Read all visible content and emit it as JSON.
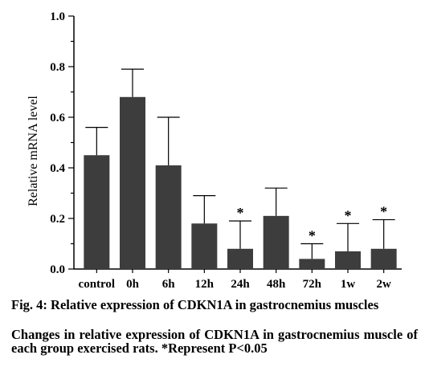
{
  "chart_data": {
    "type": "bar",
    "categories": [
      "control",
      "0h",
      "6h",
      "12h",
      "24h",
      "48h",
      "72h",
      "1w",
      "2w"
    ],
    "values": [
      0.45,
      0.68,
      0.41,
      0.18,
      0.08,
      0.21,
      0.04,
      0.07,
      0.08
    ],
    "error_upper": [
      0.56,
      0.79,
      0.6,
      0.29,
      0.19,
      0.32,
      0.1,
      0.18,
      0.195
    ],
    "significant": [
      false,
      false,
      false,
      false,
      true,
      false,
      true,
      true,
      true
    ],
    "significance_marker": "*",
    "ylabel": "Relative mRNA level",
    "xlabel": "",
    "ylim": [
      0,
      1.0
    ],
    "yticks": [
      "0.0",
      "0.2",
      "0.4",
      "0.6",
      "0.8",
      "1.0"
    ],
    "bar_color": "#3d3d3d",
    "grid": false
  },
  "caption": {
    "title": "Fig. 4: Relative expression of CDKN1A in gastrocnemius muscles",
    "description": "Changes in relative expression of CDKN1A in gastrocnemius muscle of each group exercised rats. *Represent P<0.05"
  }
}
